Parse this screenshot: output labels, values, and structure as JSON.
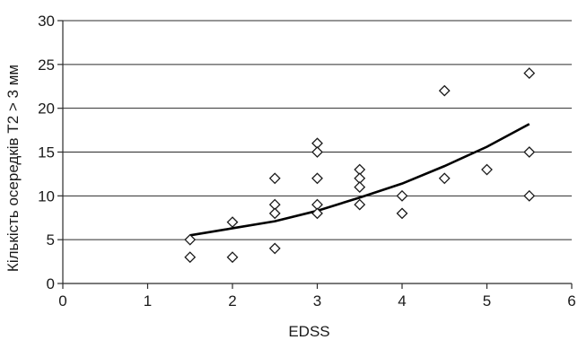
{
  "chart_data": {
    "type": "scatter",
    "title": "",
    "xlabel": "EDSS",
    "ylabel": "Кількість  осередків Т2 > 3 мм",
    "xlim": [
      0,
      6
    ],
    "ylim": [
      0,
      30
    ],
    "x_ticks": [
      0,
      1,
      2,
      3,
      4,
      5,
      6
    ],
    "y_ticks": [
      0,
      5,
      10,
      15,
      20,
      25,
      30
    ],
    "x_tick_labels": [
      "0",
      "1",
      "2",
      "3",
      "4",
      "5",
      "6"
    ],
    "y_tick_labels": [
      "0",
      "5",
      "10",
      "15",
      "20",
      "25",
      "30"
    ],
    "grid": "horizontal",
    "legend": "none",
    "series": [
      {
        "marker": "diamond",
        "points": [
          [
            1.5,
            5
          ],
          [
            1.5,
            3
          ],
          [
            2,
            7
          ],
          [
            2,
            3
          ],
          [
            2.5,
            12
          ],
          [
            2.5,
            9
          ],
          [
            2.5,
            8
          ],
          [
            2.5,
            4
          ],
          [
            3,
            16
          ],
          [
            3,
            15
          ],
          [
            3,
            12
          ],
          [
            3,
            9
          ],
          [
            3,
            8
          ],
          [
            3.5,
            13
          ],
          [
            3.5,
            12
          ],
          [
            3.5,
            11
          ],
          [
            3.5,
            9
          ],
          [
            4,
            10
          ],
          [
            4,
            8
          ],
          [
            4.5,
            22
          ],
          [
            4.5,
            12
          ],
          [
            5,
            13
          ],
          [
            5.5,
            24
          ],
          [
            5.5,
            15
          ],
          [
            5.5,
            10
          ]
        ]
      }
    ],
    "trendline": {
      "type": "exponential",
      "x_range": [
        1.5,
        5.5
      ],
      "points": [
        [
          1.5,
          5.5
        ],
        [
          2,
          6.3
        ],
        [
          2.5,
          7.1
        ],
        [
          3,
          8.3
        ],
        [
          3.5,
          9.8
        ],
        [
          4,
          11.4
        ],
        [
          4.5,
          13.4
        ],
        [
          5,
          15.6
        ],
        [
          5.5,
          18.2
        ]
      ]
    },
    "colors": {
      "marker_stroke": "#1a1a1a",
      "marker_fill": "#ffffff",
      "trendline": "#000000",
      "grid": "#2b2b2b"
    }
  }
}
